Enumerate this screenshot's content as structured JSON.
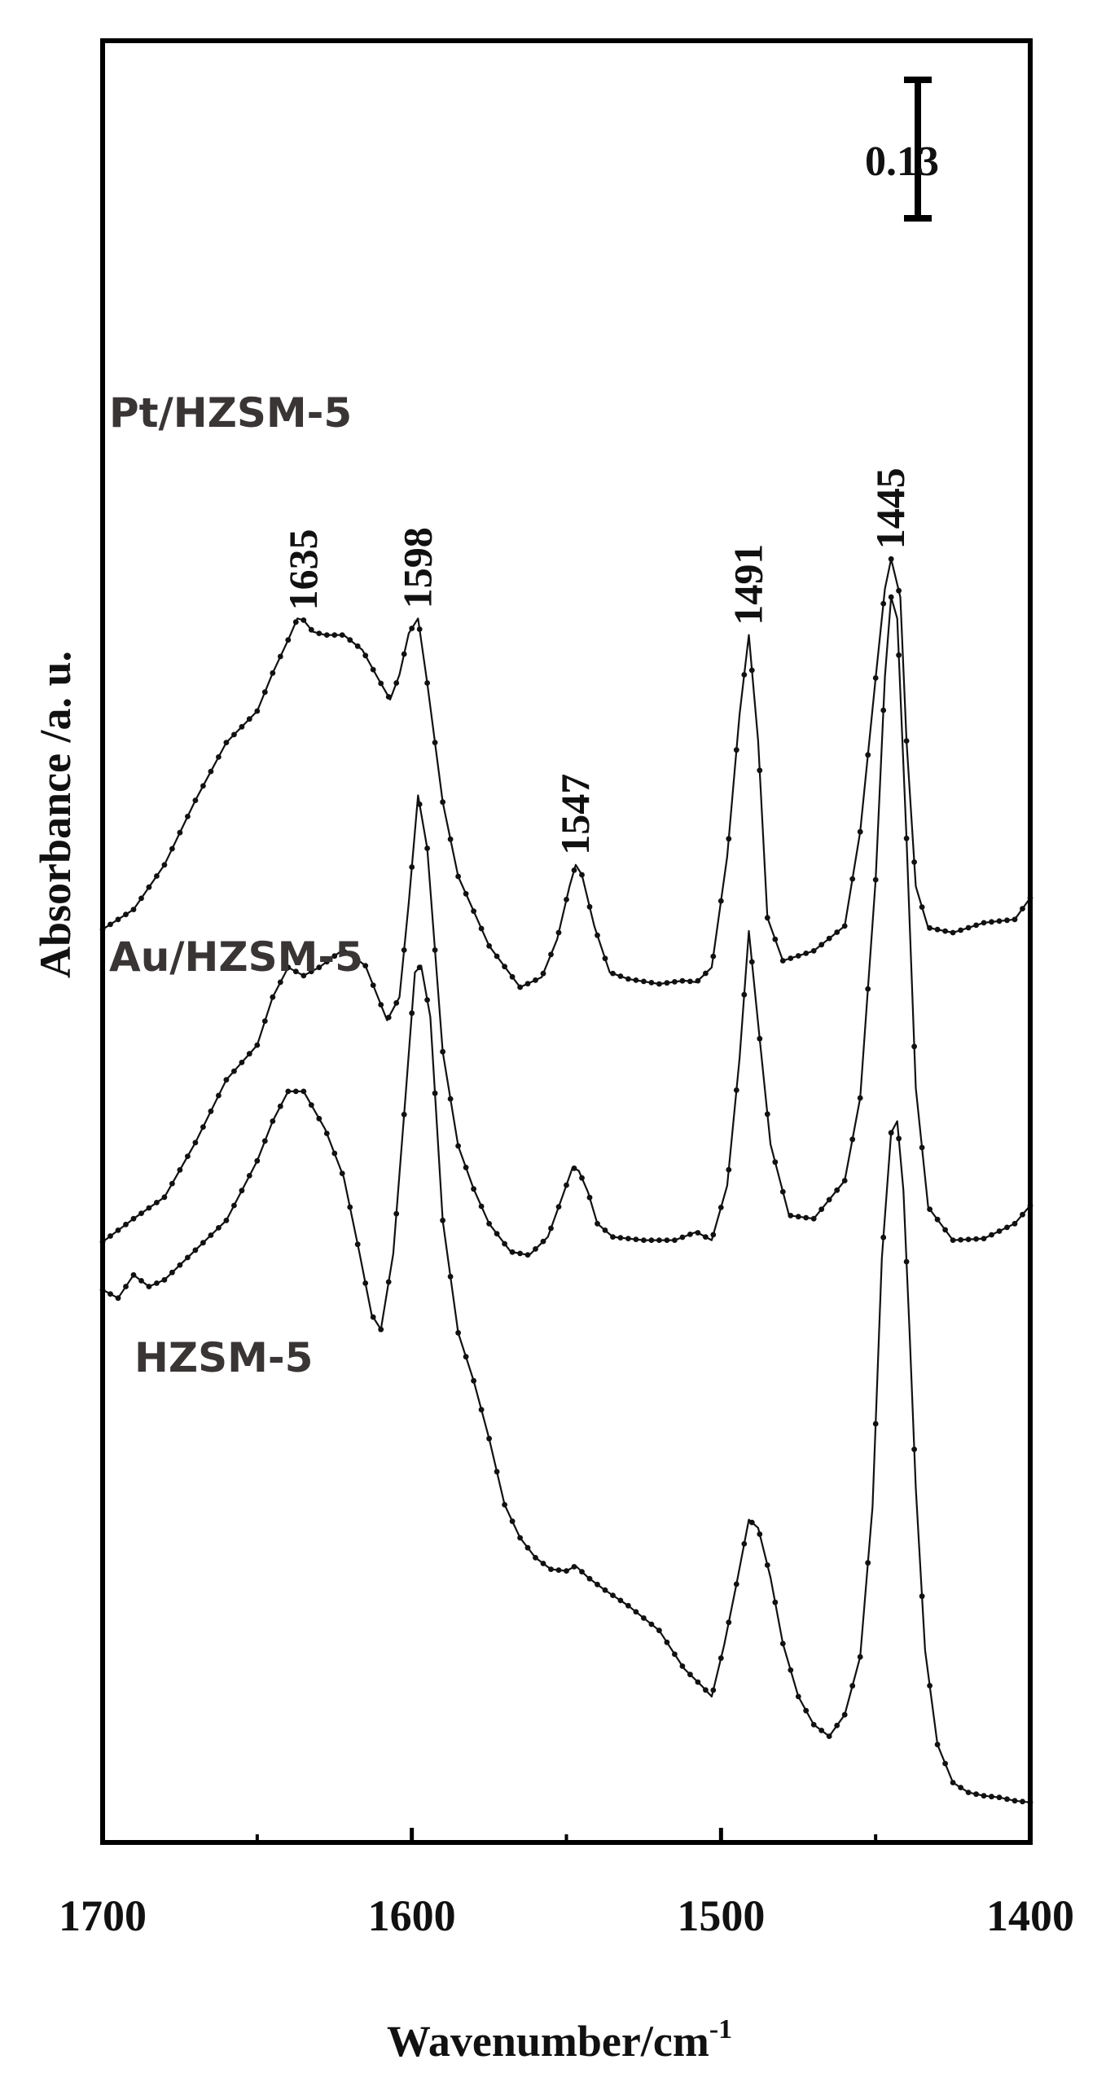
{
  "chart_data": {
    "type": "line",
    "title": "",
    "xlabel": "Wavenumber/cm",
    "xlabel_sup": "-1",
    "ylabel": "Absorbance /a. u.",
    "xlim": [
      1700,
      1400
    ],
    "x_reversed": true,
    "x_ticks": [
      1700,
      1600,
      1500,
      1400
    ],
    "x_tick_labels": [
      "1700",
      "1600",
      "1500",
      "1400"
    ],
    "y_axis": "arbitrary units, stacked offsets, no tick values",
    "ylim": [
      0,
      100
    ],
    "grid": false,
    "legend": "none (curve labels placed beside each trace)",
    "scale_bar_label": "0.13",
    "peak_labels": [
      {
        "text": "1635",
        "x": 1635
      },
      {
        "text": "1598",
        "x": 1598
      },
      {
        "text": "1547",
        "x": 1547
      },
      {
        "text": "1491",
        "x": 1491
      },
      {
        "text": "1445",
        "x": 1445
      }
    ],
    "series": [
      {
        "name": "Pt/HZSM-5",
        "color": "#111111",
        "x": [
          1700,
          1690,
          1680,
          1670,
          1660,
          1650,
          1645,
          1640,
          1637,
          1635,
          1632,
          1628,
          1622,
          1616,
          1611,
          1607,
          1604,
          1601,
          1598,
          1595,
          1590,
          1585,
          1580,
          1575,
          1565,
          1558,
          1553,
          1549,
          1547,
          1545,
          1541,
          1536,
          1530,
          1520,
          1512,
          1508,
          1503,
          1498,
          1494,
          1491,
          1488,
          1485,
          1480,
          1470,
          1460,
          1455,
          1450,
          1447,
          1445,
          1442,
          1440,
          1437,
          1433,
          1425,
          1415,
          1405,
          1400
        ],
        "y": [
          53.4,
          54.6,
          57.3,
          61.2,
          64.7,
          66.6,
          68.9,
          70.9,
          72.2,
          72.1,
          71.4,
          71.2,
          71.2,
          70.3,
          68.6,
          67.3,
          68.8,
          71.3,
          72.2,
          68.3,
          61.1,
          56.6,
          54.5,
          52.4,
          49.9,
          50.5,
          52.8,
          56.0,
          57.3,
          56.7,
          53.6,
          50.8,
          50.4,
          50.1,
          50.3,
          50.2,
          51.1,
          57.8,
          66.4,
          71.2,
          64.8,
          54.1,
          51.5,
          52.1,
          53.6,
          59.3,
          68.6,
          74.0,
          75.8,
          73.5,
          64.8,
          56.0,
          53.5,
          53.2,
          53.8,
          54.0,
          55.3
        ]
      },
      {
        "name": "Au/HZSM-5",
        "color": "#111111",
        "x": [
          1700,
          1690,
          1680,
          1670,
          1660,
          1650,
          1645,
          1640,
          1635,
          1630,
          1622,
          1615,
          1608,
          1604,
          1601,
          1598,
          1595,
          1590,
          1585,
          1580,
          1575,
          1568,
          1562,
          1556,
          1551,
          1548,
          1546,
          1543,
          1540,
          1535,
          1525,
          1515,
          1508,
          1503,
          1498,
          1494,
          1491,
          1488,
          1484,
          1478,
          1470,
          1460,
          1455,
          1450,
          1447,
          1445,
          1443,
          1440,
          1437,
          1433,
          1425,
          1415,
          1405,
          1400
        ],
        "y": [
          34.5,
          35.9,
          37.2,
          40.5,
          44.3,
          46.4,
          49.3,
          51.1,
          50.6,
          51.1,
          52.2,
          51.2,
          47.9,
          49.3,
          55.0,
          61.5,
          58.3,
          46.0,
          40.3,
          37.7,
          35.6,
          33.9,
          33.7,
          34.8,
          37.4,
          39.0,
          38.8,
          37.5,
          35.6,
          34.8,
          34.6,
          34.6,
          35.1,
          34.6,
          37.9,
          45.6,
          53.3,
          47.7,
          40.4,
          36.1,
          35.9,
          38.2,
          43.2,
          56.4,
          68.7,
          73.5,
          72.2,
          58.9,
          43.8,
          36.6,
          34.6,
          34.7,
          35.6,
          36.7
        ]
      },
      {
        "name": "HZSM-5",
        "color": "#111111",
        "x": [
          1700,
          1695,
          1690,
          1685,
          1680,
          1670,
          1660,
          1650,
          1645,
          1640,
          1635,
          1628,
          1622,
          1617,
          1613,
          1610,
          1606,
          1602,
          1599,
          1597,
          1594,
          1590,
          1585,
          1580,
          1575,
          1570,
          1565,
          1560,
          1555,
          1550,
          1547,
          1543,
          1538,
          1530,
          1520,
          1512,
          1506,
          1503,
          1499,
          1495,
          1491,
          1488,
          1484,
          1480,
          1475,
          1470,
          1465,
          1460,
          1455,
          1451,
          1448,
          1445,
          1443,
          1441,
          1439,
          1437,
          1434,
          1430,
          1425,
          1420,
          1415,
          1410,
          1405,
          1400
        ],
        "y": [
          31.6,
          31.1,
          32.5,
          31.8,
          32.2,
          34.0,
          35.8,
          39.4,
          41.8,
          43.6,
          43.6,
          41.3,
          38.4,
          33.9,
          30.1,
          29.2,
          33.8,
          43.4,
          50.8,
          51.2,
          48.1,
          35.8,
          29.0,
          26.1,
          22.6,
          18.6,
          16.6,
          15.4,
          14.7,
          14.6,
          14.9,
          14.2,
          13.5,
          12.5,
          11.0,
          8.7,
          7.6,
          7.0,
          10.1,
          13.8,
          17.7,
          17.2,
          14.2,
          10.2,
          7.0,
          5.3,
          4.6,
          5.9,
          9.4,
          18.5,
          33.5,
          41.1,
          41.8,
          37.6,
          29.0,
          19.6,
          9.8,
          4.1,
          1.8,
          1.2,
          1.0,
          0.9,
          0.7,
          0.6
        ]
      }
    ]
  }
}
